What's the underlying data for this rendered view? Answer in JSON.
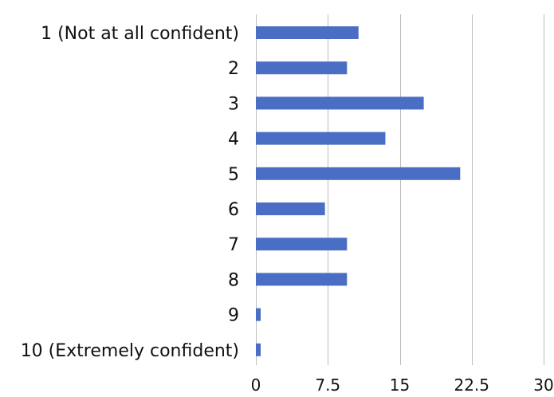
{
  "chart_data": {
    "type": "bar",
    "orientation": "horizontal",
    "categories": [
      "1 (Not at all confident)",
      "2",
      "3",
      "4",
      "5",
      "6",
      "7",
      "8",
      "9",
      "10 (Extremely confident)"
    ],
    "series": [
      {
        "values": [
          10.7,
          9.5,
          17.5,
          13.5,
          21.3,
          7.2,
          9.5,
          9.5,
          0.5,
          0.5
        ]
      }
    ],
    "xlim": [
      0,
      30
    ],
    "xticks": [
      0,
      7.5,
      15,
      22.5,
      30
    ],
    "xtick_labels": [
      "0",
      "7.5",
      "15",
      "22.5",
      "30"
    ],
    "title": "",
    "xlabel": "",
    "ylabel": "",
    "grid": "vertical",
    "legend": "none",
    "bar_color": "#4a6ec3",
    "grid_color": "#bdbdbd"
  }
}
